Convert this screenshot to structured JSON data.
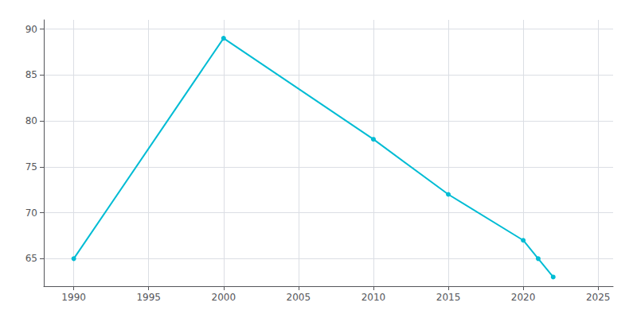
{
  "chart_data": {
    "type": "line",
    "x": [
      1990,
      2000,
      2010,
      2015,
      2020,
      2021,
      2022
    ],
    "values": [
      65,
      89,
      78,
      72,
      67,
      65,
      63
    ],
    "color": "#00BCD4",
    "marker": "circle",
    "xlim": [
      1988,
      2026
    ],
    "ylim": [
      62,
      91
    ],
    "xticks": [
      1990,
      1995,
      2000,
      2005,
      2010,
      2015,
      2020,
      2025
    ],
    "yticks": [
      65,
      70,
      75,
      80,
      85,
      90
    ],
    "grid": true
  }
}
